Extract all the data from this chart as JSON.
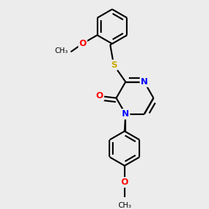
{
  "bg": "#ececec",
  "lw": 1.6,
  "fs": 9,
  "colors": {
    "N": "#0000ff",
    "O": "#ff0000",
    "S": "#ccaa00",
    "bond": "#000000"
  },
  "figsize": [
    3.0,
    3.0
  ],
  "dpi": 100,
  "xlim": [
    0,
    10
  ],
  "ylim": [
    0,
    10
  ]
}
